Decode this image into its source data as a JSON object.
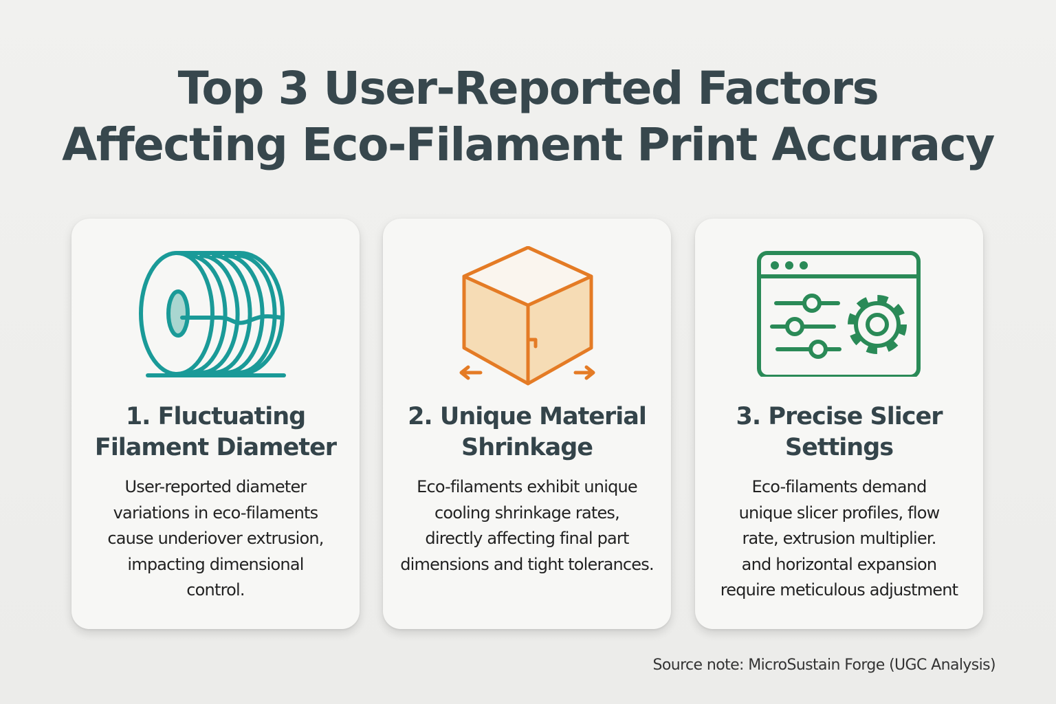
{
  "title": {
    "line1": "Top 3 User-Reported Factors",
    "line2": "Affecting Eco-Filament Print Accuracy"
  },
  "colors": {
    "teal": "#1a9a98",
    "orange": "#e47b25",
    "green": "#2a8a57",
    "title": "#37474d"
  },
  "cards": [
    {
      "icon": "filament-spool-icon",
      "title_line1": "1. Fluctuating",
      "title_line2": "Filament Diameter",
      "body": [
        "User-reported diameter",
        "variations in eco-filaments",
        "cause underiover extrusion,",
        "impacting dimensional",
        "control."
      ]
    },
    {
      "icon": "shrinking-cube-icon",
      "title_line1": "2. Unique Material",
      "title_line2": "Shrinkage",
      "body": [
        "Eco-filaments exhibit unique",
        "cooling shrinkage rates,",
        "directly affecting final part",
        "dimensions and tight tolerances."
      ]
    },
    {
      "icon": "slicer-settings-window-icon",
      "title_line1": "3. Precise Slicer",
      "title_line2": "Settings",
      "body": [
        "Eco-filaments demand",
        "unique slicer profiles, flow",
        "rate, extrusion multiplier.",
        "and horizontal expansion",
        "require meticulous adjustment"
      ]
    }
  ],
  "source_note": "Source note: MicroSustain  Forge (UGC Analysis)"
}
